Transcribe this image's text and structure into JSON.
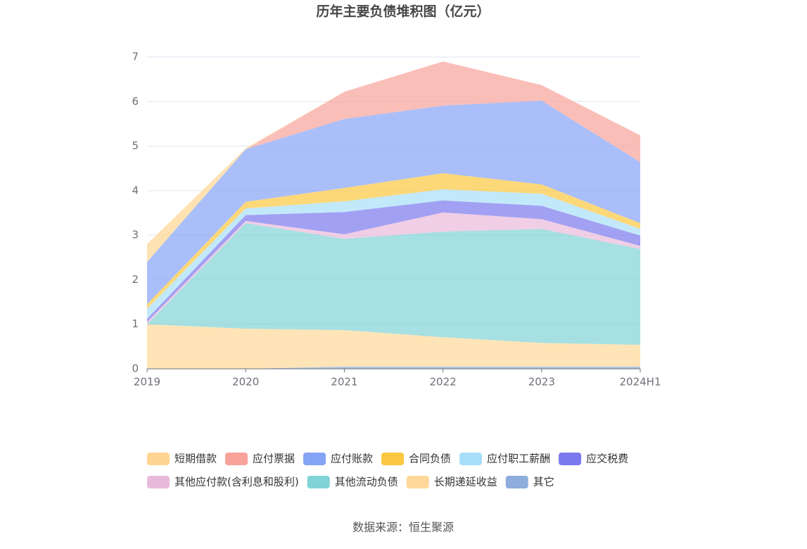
{
  "chart_data": {
    "type": "stacked-area",
    "title": "历年主要负债堆积图（亿元）",
    "source": "数据来源：恒生聚源",
    "categories": [
      "2019",
      "2020",
      "2021",
      "2022",
      "2023",
      "2024H1"
    ],
    "ylim": [
      0,
      7
    ],
    "yticks": [
      0,
      1,
      2,
      3,
      4,
      5,
      6,
      7
    ],
    "grid": true,
    "series": [
      {
        "name": "短期借款",
        "color": "#ffd591",
        "values": [
          0.4,
          0.02,
          0,
          0,
          0,
          0
        ]
      },
      {
        "name": "应付票据",
        "color": "#f8a29a",
        "values": [
          0,
          0,
          0.61,
          0.99,
          0.35,
          0.6
        ]
      },
      {
        "name": "应付账款",
        "color": "#86a4f6",
        "values": [
          0.95,
          1.18,
          1.55,
          1.52,
          1.88,
          1.37
        ]
      },
      {
        "name": "合同负债",
        "color": "#fcc740",
        "values": [
          0.1,
          0.15,
          0.3,
          0.36,
          0.21,
          0.13
        ]
      },
      {
        "name": "应付职工薪酬",
        "color": "#a8dff8",
        "values": [
          0.23,
          0.15,
          0.24,
          0.25,
          0.27,
          0.15
        ]
      },
      {
        "name": "应交税费",
        "color": "#7a78ed",
        "values": [
          0.07,
          0.13,
          0.5,
          0.27,
          0.3,
          0.23
        ]
      },
      {
        "name": "其他应付款(含利息和股利)",
        "color": "#e9b9dc",
        "values": [
          0.05,
          0.05,
          0.1,
          0.43,
          0.22,
          0.07
        ]
      },
      {
        "name": "其他流动负债",
        "color": "#80d3d6",
        "values": [
          0,
          2.37,
          2.05,
          2.37,
          2.56,
          2.15
        ]
      },
      {
        "name": "长期递延收益",
        "color": "#ffd899",
        "values": [
          1.0,
          0.9,
          0.82,
          0.66,
          0.53,
          0.49
        ]
      },
      {
        "name": "其它",
        "color": "#8eacdc",
        "values": [
          0,
          0,
          0.05,
          0.05,
          0.05,
          0.05
        ]
      }
    ]
  }
}
